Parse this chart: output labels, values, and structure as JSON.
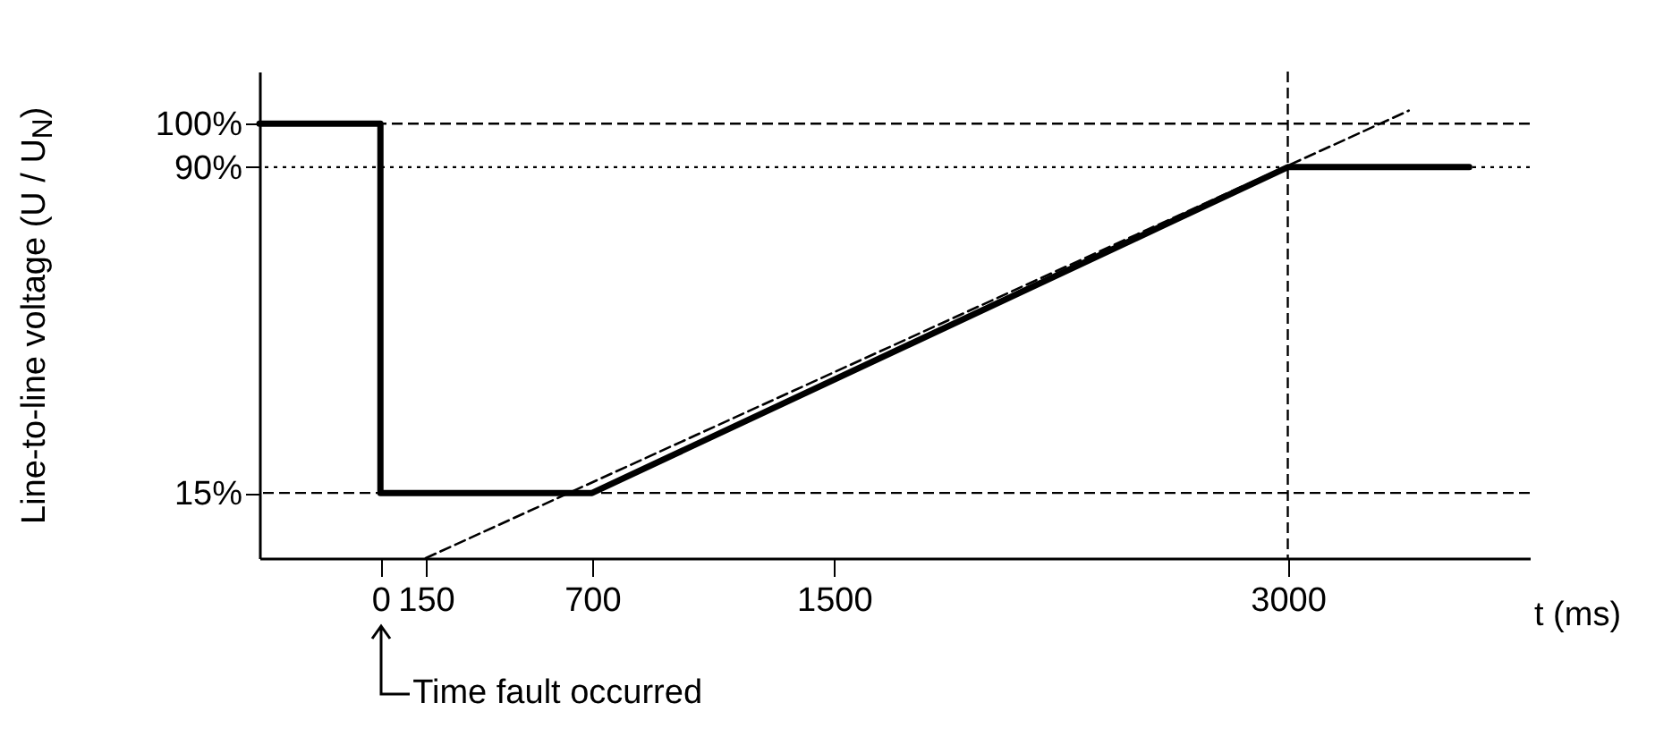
{
  "chart_data": {
    "type": "line",
    "ylabel": "Line-to-line voltage (U / U$_{N}$)",
    "xlabel": "t (ms)",
    "x": [
      -400,
      0,
      0,
      700,
      3000,
      3600
    ],
    "series": [
      {
        "color": "#000000",
        "line_style": "solid",
        "values": [
          100,
          100,
          15,
          15,
          90,
          90
        ]
      },
      {
        "color": "#000000",
        "line_style": "dashed",
        "x": [
          150,
          3400
        ],
        "values": [
          0,
          103
        ]
      }
    ],
    "xlim": [
      -400,
      3800
    ],
    "xticks": [
      0,
      150,
      700,
      1500,
      3000
    ],
    "ylim": [
      0,
      112
    ],
    "yticks": [
      {
        "value": 15,
        "label": "15%"
      },
      {
        "value": 90,
        "label": "90%"
      },
      {
        "value": 100,
        "label": "100%"
      }
    ],
    "ref_lines": [
      {
        "axis": "y",
        "value": 100,
        "line_style": "dashed"
      },
      {
        "axis": "y",
        "value": 90,
        "line_style": "dotted"
      },
      {
        "axis": "y",
        "value": 15,
        "line_style": "dashed"
      },
      {
        "axis": "x",
        "value": 3000,
        "line_style": "dashed"
      }
    ],
    "annotations": [
      "Time fault occurred"
    ],
    "grid": false,
    "marker": "none"
  }
}
